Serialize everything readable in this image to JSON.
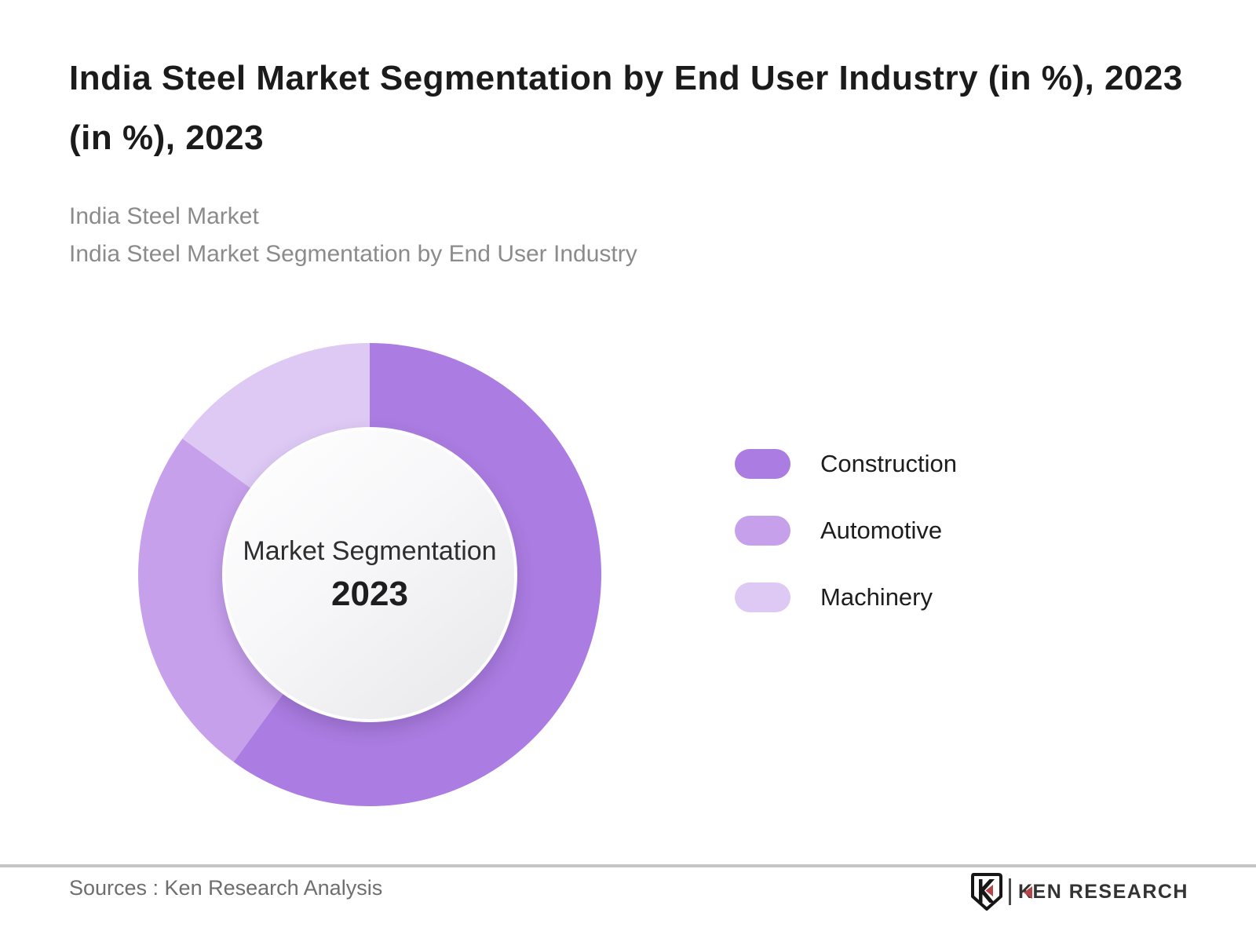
{
  "title": "India Steel Market Segmentation by End User Industry (in %), 2023 (in %), 2023",
  "subtitle": {
    "line1": "India Steel Market",
    "line2": "India Steel Market Segmentation by End User Industry"
  },
  "chart_data": {
    "type": "pie",
    "title": "India Steel Market Segmentation by End User Industry (in %), 2023",
    "donut": true,
    "inner_radius_ratio": 0.63,
    "start_angle_deg": 0,
    "direction": "clockwise",
    "unit": "%",
    "categories": [
      "Construction",
      "Automotive",
      "Machinery"
    ],
    "values": [
      60,
      25,
      15
    ],
    "colors": [
      "#ab7ce1",
      "#c7a0ec",
      "#ddc9f4"
    ],
    "legend_position": "right",
    "center_label": "Market Segmentation",
    "center_sublabel": "2023"
  },
  "donut_center": {
    "label": "Market Segmentation",
    "year": "2023"
  },
  "footer": {
    "sources": "Sources : Ken Research Analysis",
    "logo_k": "K",
    "logo_rest": "EN RESEARCH"
  },
  "colors": {
    "accent_construction": "#ab7ce1",
    "accent_automotive": "#c7a0ec",
    "accent_machinery": "#ddc9f4",
    "title_text": "#1b1b1b",
    "subtitle_text": "#8b8b8b",
    "divider": "#c5c5c5",
    "logo_red": "#b4464b"
  }
}
